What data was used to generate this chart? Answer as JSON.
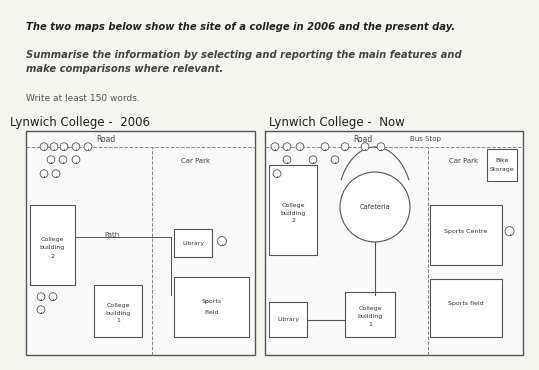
{
  "title_text": "The two maps below show the site of a college in 2006 and the present day.",
  "subtitle_text": "Summarise the information by selecting and reporting the main features and\nmake comparisons where relevant.",
  "write_text": "Write at least 150 words.",
  "map1_title": "Lynwich College -  2006",
  "map2_title": "Lynwich College -  Now",
  "bg_color": "#f5f5f0",
  "box_color": "#ffffff",
  "border_color": "#555555",
  "text_color": "#333333",
  "road_dash": [
    4,
    3
  ]
}
